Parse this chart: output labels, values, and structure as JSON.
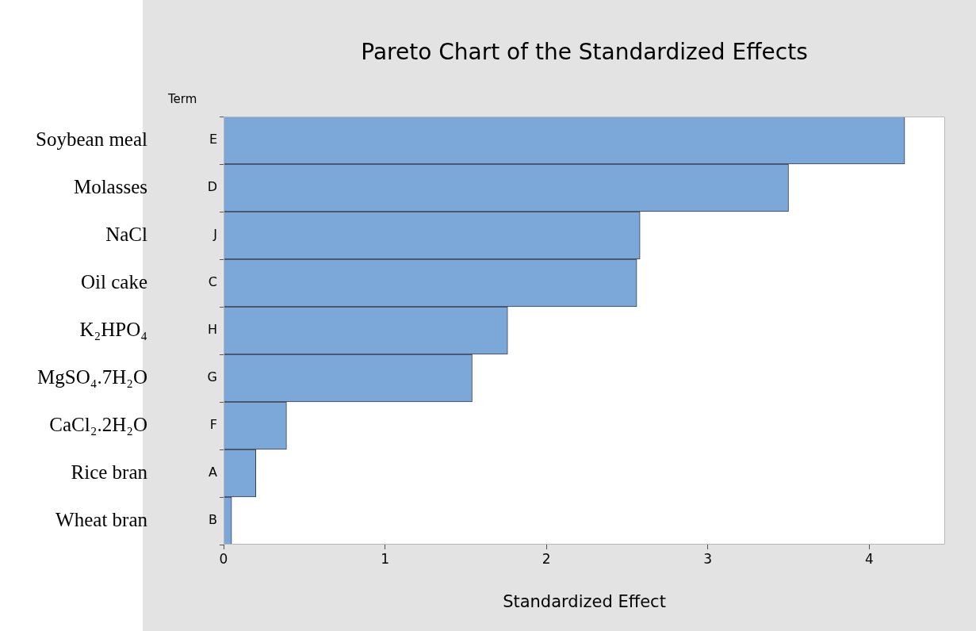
{
  "chart_data": {
    "type": "bar",
    "orientation": "horizontal",
    "title": "Pareto Chart of the Standardized Effects",
    "xlabel": "Standardized Effect",
    "ylabel": "Term",
    "categories": [
      "E",
      "D",
      "J",
      "C",
      "H",
      "G",
      "F",
      "A",
      "B"
    ],
    "values": [
      4.22,
      3.5,
      2.58,
      2.56,
      1.76,
      1.54,
      0.39,
      0.2,
      0.05
    ],
    "color": "#7ba7d9",
    "xlim": [
      0,
      4.47
    ],
    "xticks": [
      0,
      1,
      2,
      3,
      4
    ],
    "annotations": [
      "Soybean meal",
      "Molasses",
      "NaCl",
      "Oil cake",
      "K₂HPO₄",
      "MgSO₄.7H₂O",
      "CaCl₂.2H₂O",
      "Rice bran",
      "Wheat bran"
    ]
  }
}
